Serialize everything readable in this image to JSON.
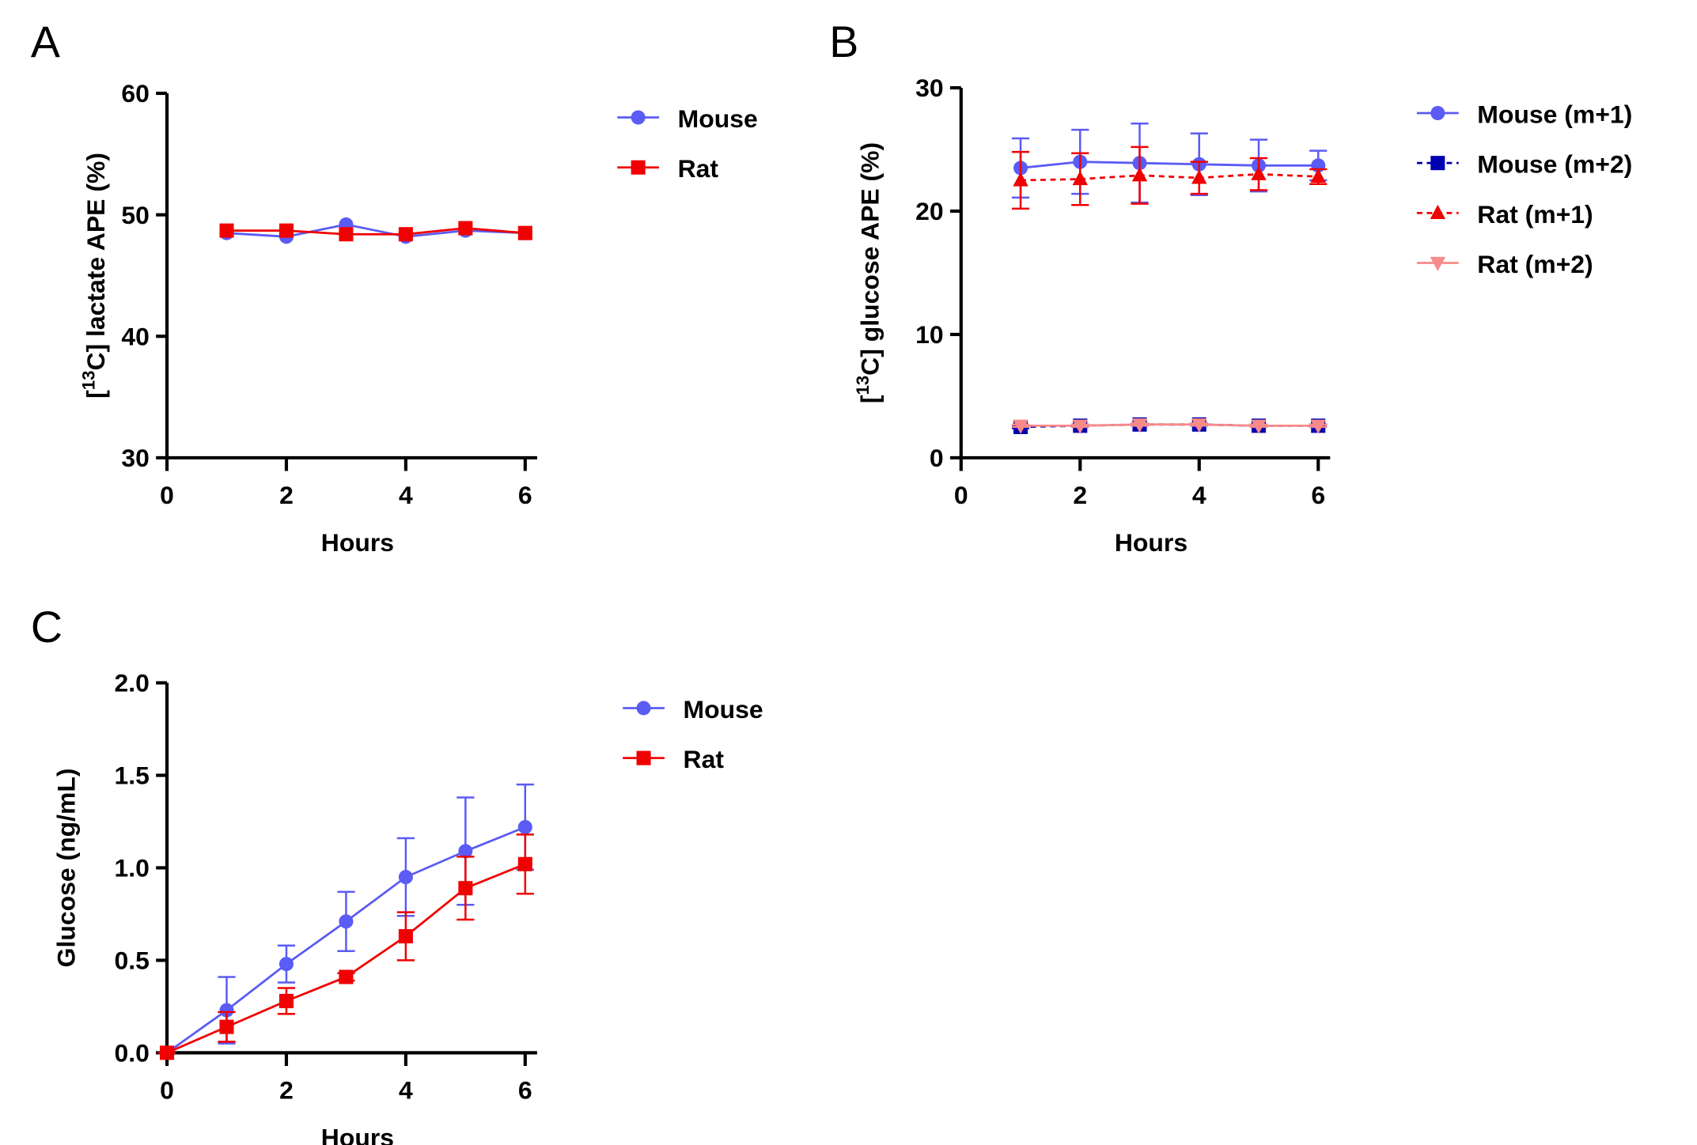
{
  "chart_data": [
    {
      "type": "line",
      "panel": "A",
      "ylabel_open": "[",
      "ylabel_sup": "13",
      "ylabel_rest": "C] lactate APE (%)",
      "xlabel": "Hours",
      "xlim": [
        0,
        6.2
      ],
      "xticks": [
        0,
        2,
        4,
        6
      ],
      "ylim": [
        30,
        60
      ],
      "yticks": [
        30,
        40,
        50,
        60
      ],
      "x": [
        1,
        2,
        3,
        4,
        5,
        6
      ],
      "series": [
        {
          "name": "Mouse",
          "color": "#5b5bf5",
          "marker": "circle",
          "dashed": false,
          "values": [
            48.5,
            48.2,
            49.2,
            48.2,
            48.7,
            48.5
          ]
        },
        {
          "name": "Rat",
          "color": "#f00000",
          "marker": "square",
          "dashed": false,
          "values": [
            48.7,
            48.7,
            48.4,
            48.4,
            48.9,
            48.5
          ]
        }
      ]
    },
    {
      "type": "line",
      "panel": "B",
      "ylabel_open": "[",
      "ylabel_sup": "13",
      "ylabel_rest": "C] glucose APE (%)",
      "xlabel": "Hours",
      "xlim": [
        0,
        6.2
      ],
      "xticks": [
        0,
        2,
        4,
        6
      ],
      "ylim": [
        0,
        30
      ],
      "yticks": [
        0,
        10,
        20,
        30
      ],
      "x": [
        1,
        2,
        3,
        4,
        5,
        6
      ],
      "series": [
        {
          "name": "Mouse (m+1)",
          "color": "#5b5bf5",
          "marker": "circle",
          "dashed": false,
          "values": [
            23.5,
            24.0,
            23.9,
            23.8,
            23.7,
            23.7
          ],
          "errors": [
            2.4,
            2.6,
            3.2,
            2.5,
            2.1,
            1.2
          ]
        },
        {
          "name": "Mouse (m+2)",
          "color": "#0000b0",
          "marker": "square",
          "dashed": true,
          "values": [
            2.5,
            2.6,
            2.7,
            2.7,
            2.6,
            2.6
          ],
          "errors": [
            0.1,
            0.1,
            0.1,
            0.1,
            0.1,
            0.1
          ]
        },
        {
          "name": "Rat (m+1)",
          "color": "#f00000",
          "marker": "triangle",
          "dashed": true,
          "values": [
            22.5,
            22.6,
            22.9,
            22.7,
            23.0,
            22.8
          ],
          "errors": [
            2.3,
            2.1,
            2.3,
            1.3,
            1.3,
            0.6
          ]
        },
        {
          "name": "Rat (m+2)",
          "color": "#f88a8a",
          "marker": "triangle-down",
          "dashed": false,
          "values": [
            2.6,
            2.6,
            2.7,
            2.7,
            2.6,
            2.6
          ],
          "errors": [
            0.1,
            0.1,
            0.1,
            0.1,
            0.1,
            0.1
          ]
        }
      ]
    },
    {
      "type": "line",
      "panel": "C",
      "ylabel": "Glucose (ng/mL)",
      "xlabel": "Hours",
      "xlim": [
        0,
        6.2
      ],
      "xticks": [
        0,
        2,
        4,
        6
      ],
      "ylim": [
        0,
        2
      ],
      "yticks": [
        {
          "value": 0,
          "label": "0.0"
        },
        {
          "value": 0.5,
          "label": "0.5"
        },
        {
          "value": 1,
          "label": "1.0"
        },
        {
          "value": 1.5,
          "label": "1.5"
        },
        {
          "value": 2,
          "label": "2.0"
        }
      ],
      "x": [
        0,
        1,
        2,
        3,
        4,
        5,
        6
      ],
      "series": [
        {
          "name": "Mouse",
          "color": "#5b5bf5",
          "marker": "circle",
          "dashed": false,
          "values": [
            0,
            0.23,
            0.48,
            0.71,
            0.95,
            1.09,
            1.22
          ],
          "errors": [
            0,
            0.18,
            0.1,
            0.16,
            0.21,
            0.29,
            0.23
          ]
        },
        {
          "name": "Rat",
          "color": "#f00000",
          "marker": "square",
          "dashed": false,
          "values": [
            0,
            0.14,
            0.28,
            0.41,
            0.63,
            0.89,
            1.02
          ],
          "errors": [
            0,
            0.08,
            0.07,
            0.02,
            0.13,
            0.17,
            0.16
          ]
        }
      ]
    }
  ]
}
